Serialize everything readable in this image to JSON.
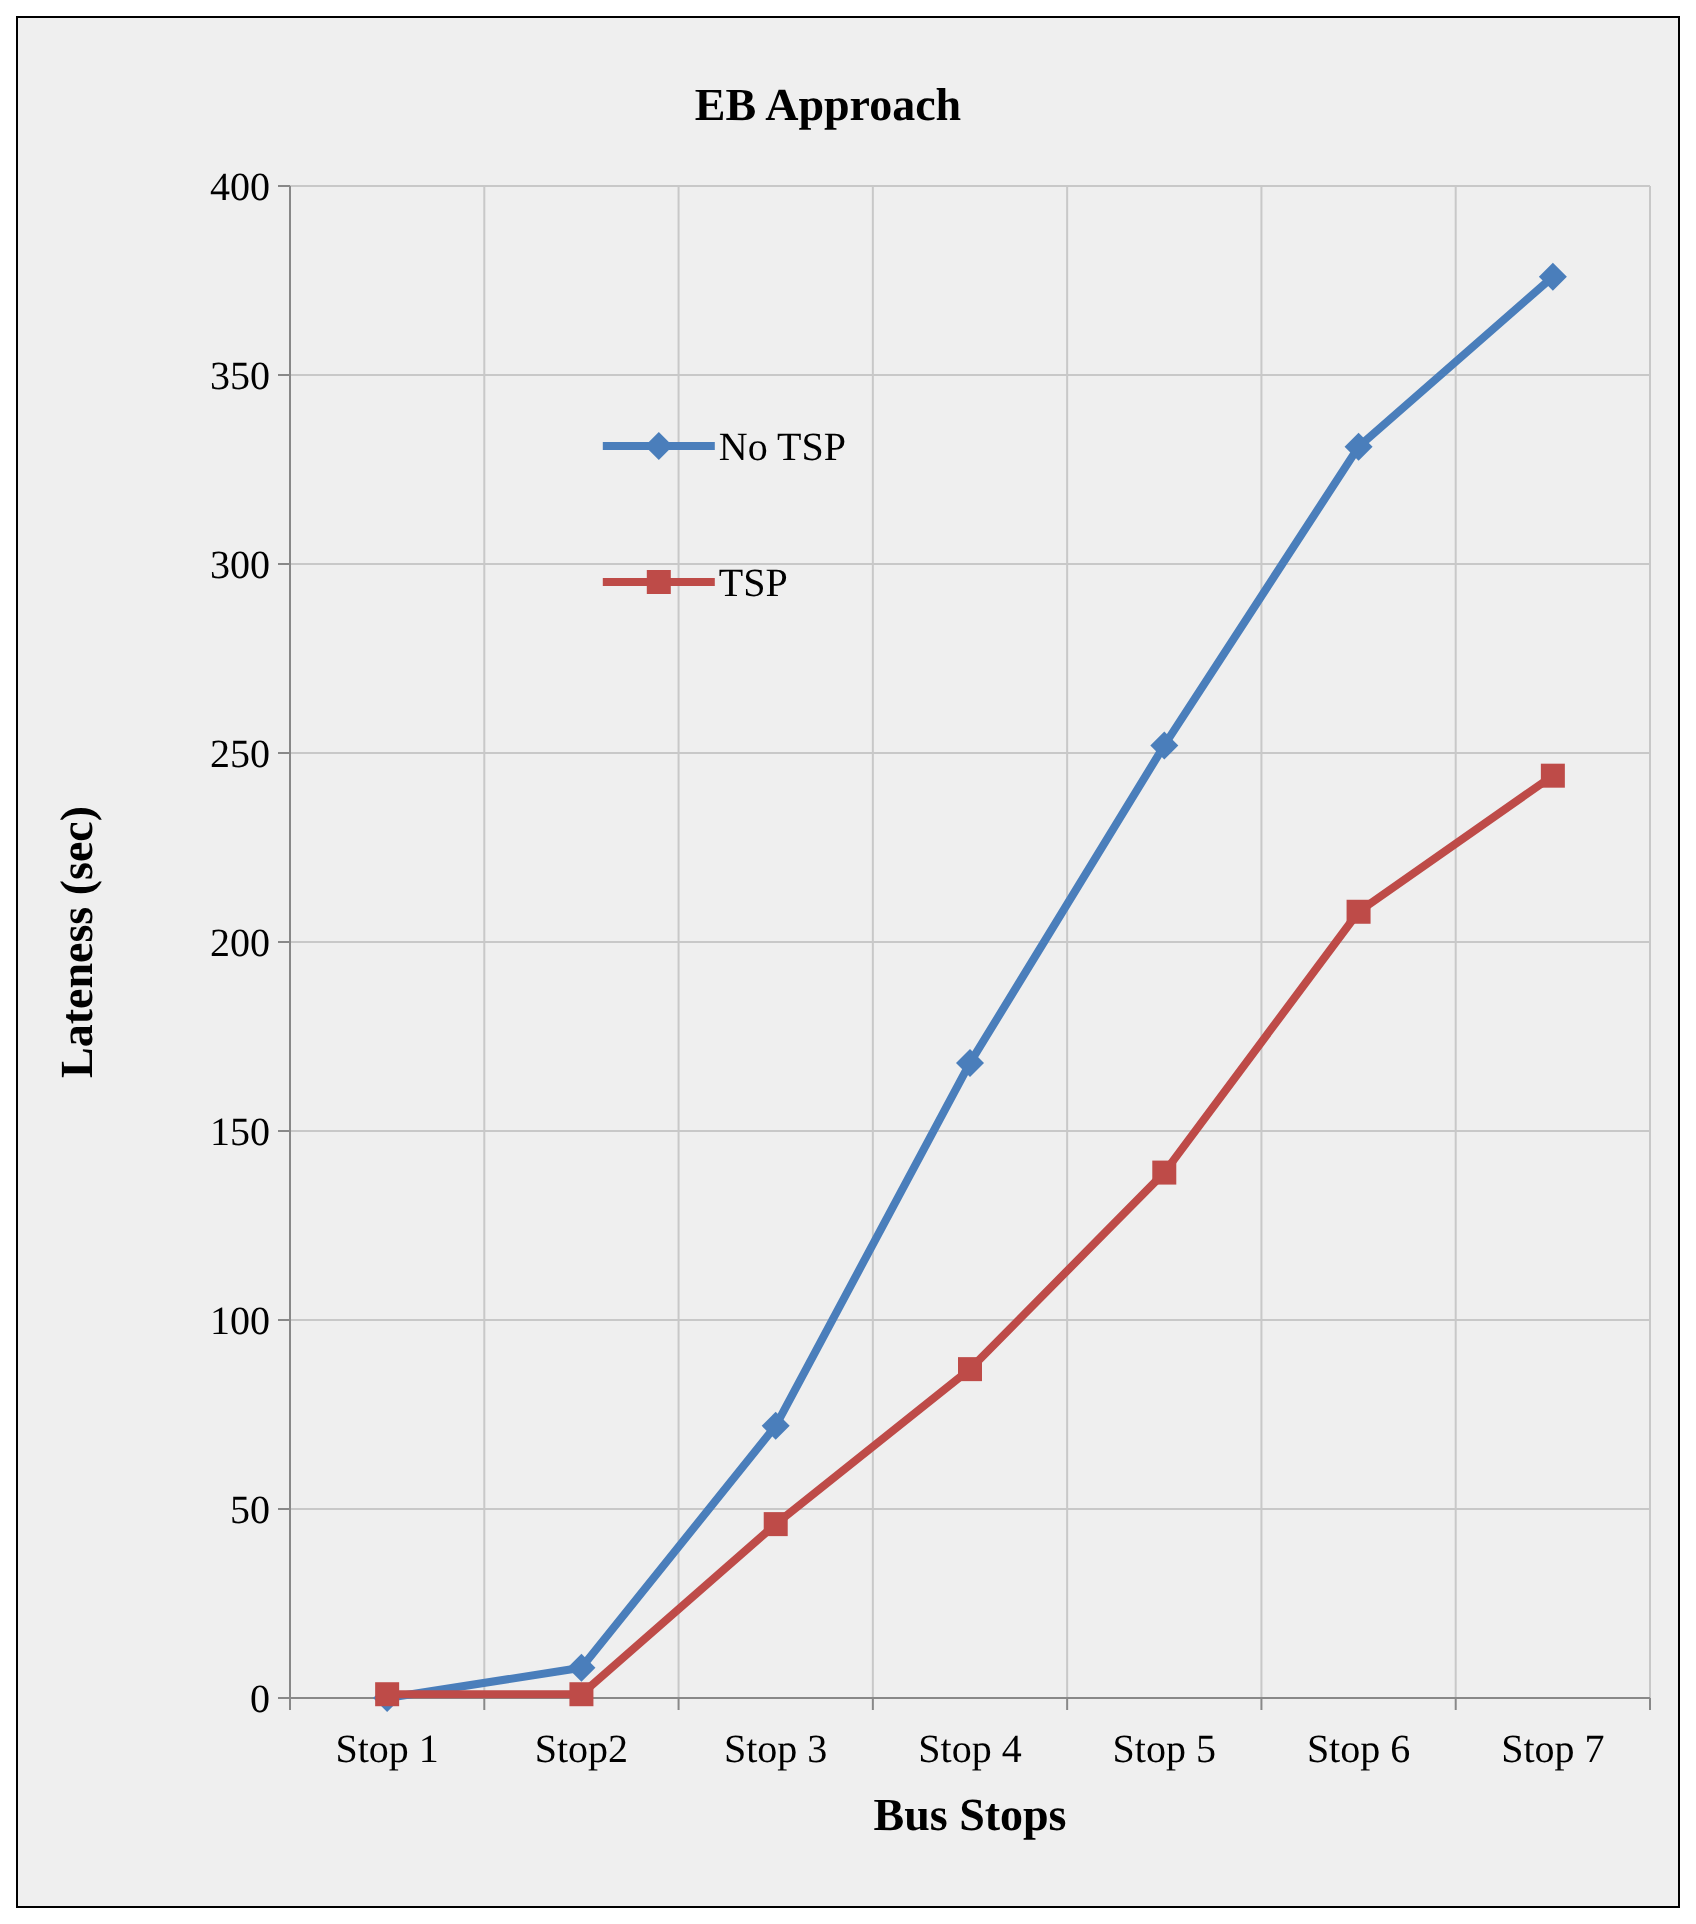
{
  "chart_data": {
    "type": "line",
    "title": "EB Approach",
    "xlabel": "Bus Stops",
    "ylabel": "Lateness (sec)",
    "categories": [
      "Stop 1",
      "Stop2",
      "Stop 3",
      "Stop 4",
      "Stop 5",
      "Stop 6",
      "Stop 7"
    ],
    "series": [
      {
        "name": "No TSP",
        "color": "#4a7ebb",
        "marker": "diamond",
        "values": [
          0,
          8,
          72,
          168,
          252,
          331,
          376
        ]
      },
      {
        "name": "TSP",
        "color": "#be4b48",
        "marker": "square",
        "values": [
          1,
          1,
          46,
          87,
          139,
          208,
          244
        ]
      }
    ],
    "ylim": [
      0,
      400
    ],
    "yticks": [
      0,
      50,
      100,
      150,
      200,
      250,
      300,
      350,
      400
    ],
    "grid": true,
    "legend": "top left"
  }
}
